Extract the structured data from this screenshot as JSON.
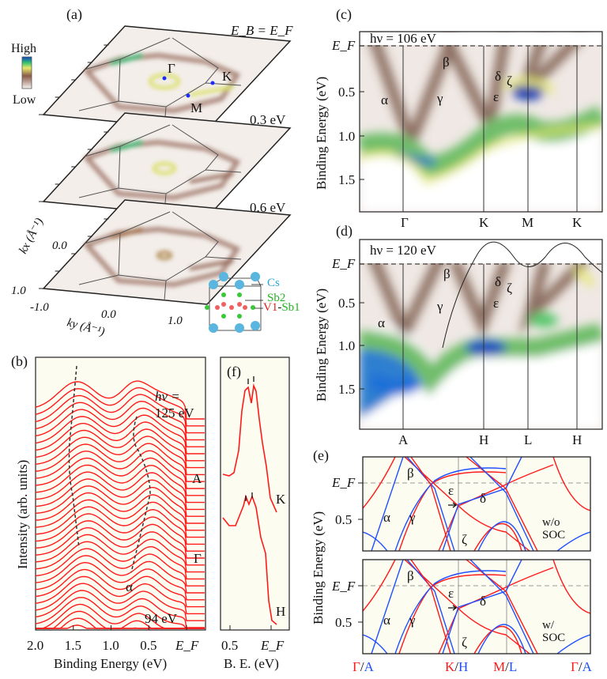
{
  "panel_a": {
    "label": "(a)",
    "colorbar_high": "High",
    "colorbar_low": "Low",
    "energy_labels": [
      "E_B = E_F",
      "0.3 eV",
      "0.6 eV"
    ],
    "energy_top_E": "E",
    "energy_top_sub1": "B",
    "energy_top_eq": " = E",
    "energy_top_sub2": "F",
    "points": [
      "Γ",
      "K",
      "M"
    ],
    "kx_label": "kx (Å⁻¹)",
    "ky_label": "ky (Å⁻¹)",
    "kx_ticks": [
      "0.0",
      "1.0"
    ],
    "ky_ticks": [
      "-1.0",
      "0.0",
      "1.0"
    ],
    "atoms": [
      {
        "name": "Cs",
        "color": "#29a8d8"
      },
      {
        "name": "Sb2",
        "color": "#22b422"
      },
      {
        "name": "V1",
        "color": "#e02020"
      },
      {
        "name": "-",
        "color": "#111111"
      },
      {
        "name": "Sb1",
        "color": "#22b422"
      }
    ],
    "colormap": [
      "#f6f2ef",
      "#8a5a48",
      "#e8e86a",
      "#30c070",
      "#1040c0"
    ]
  },
  "panel_b": {
    "label": "(b)",
    "hv_top": "hν =",
    "hv_top_value": "125 eV",
    "hv_bottom": "94 eV",
    "band_label": "α",
    "kz_points": [
      "A",
      "Γ"
    ],
    "xlabel": "Binding Energy (eV)",
    "ylabel": "Intensity (arb. units)",
    "xticks": [
      "2.0",
      "1.5",
      "1.0",
      "0.5",
      "E_F"
    ],
    "curve_color": "#ff1a1a"
  },
  "panel_f": {
    "label": "(f)",
    "curves": [
      "K",
      "H"
    ],
    "xlabel": "B. E. (eV)",
    "xticks": [
      "0.5",
      "E_F"
    ]
  },
  "panel_c": {
    "label": "(c)",
    "hv": "hν = 106 eV",
    "ef": "E_F",
    "ylabel": "Binding Energy (eV)",
    "yticks": [
      "0.5",
      "1.0",
      "1.5"
    ],
    "xpoints": [
      "Γ",
      "K",
      "M",
      "K"
    ],
    "bands": [
      "α",
      "β",
      "γ",
      "δ",
      "ε",
      "ζ"
    ]
  },
  "panel_d": {
    "label": "(d)",
    "hv": "hν = 120 eV",
    "ef": "E_F",
    "ylabel": "Binding Energy (eV)",
    "yticks": [
      "0.5",
      "1.0",
      "1.5"
    ],
    "xpoints": [
      "A",
      "H",
      "L",
      "H"
    ],
    "bands": [
      "α",
      "β",
      "γ",
      "δ",
      "ε",
      "ζ"
    ]
  },
  "panel_e": {
    "label": "(e)",
    "ylabel": "Binding Energy (eV)",
    "yticks": [
      "E_F",
      "0.5"
    ],
    "upper_note": [
      "w/o",
      "SOC"
    ],
    "lower_note": [
      "w/",
      "SOC"
    ],
    "bands": [
      "α",
      "β",
      "γ",
      "δ",
      "ε",
      "ζ"
    ],
    "xpoints": [
      {
        "red": "Γ",
        "blue": "A"
      },
      {
        "red": "K",
        "blue": "H"
      },
      {
        "red": "M",
        "blue": "L"
      },
      {
        "red": "Γ",
        "blue": "A"
      }
    ],
    "colors": {
      "kz0": "#ff1a1a",
      "kzpi": "#1f4fff"
    }
  }
}
